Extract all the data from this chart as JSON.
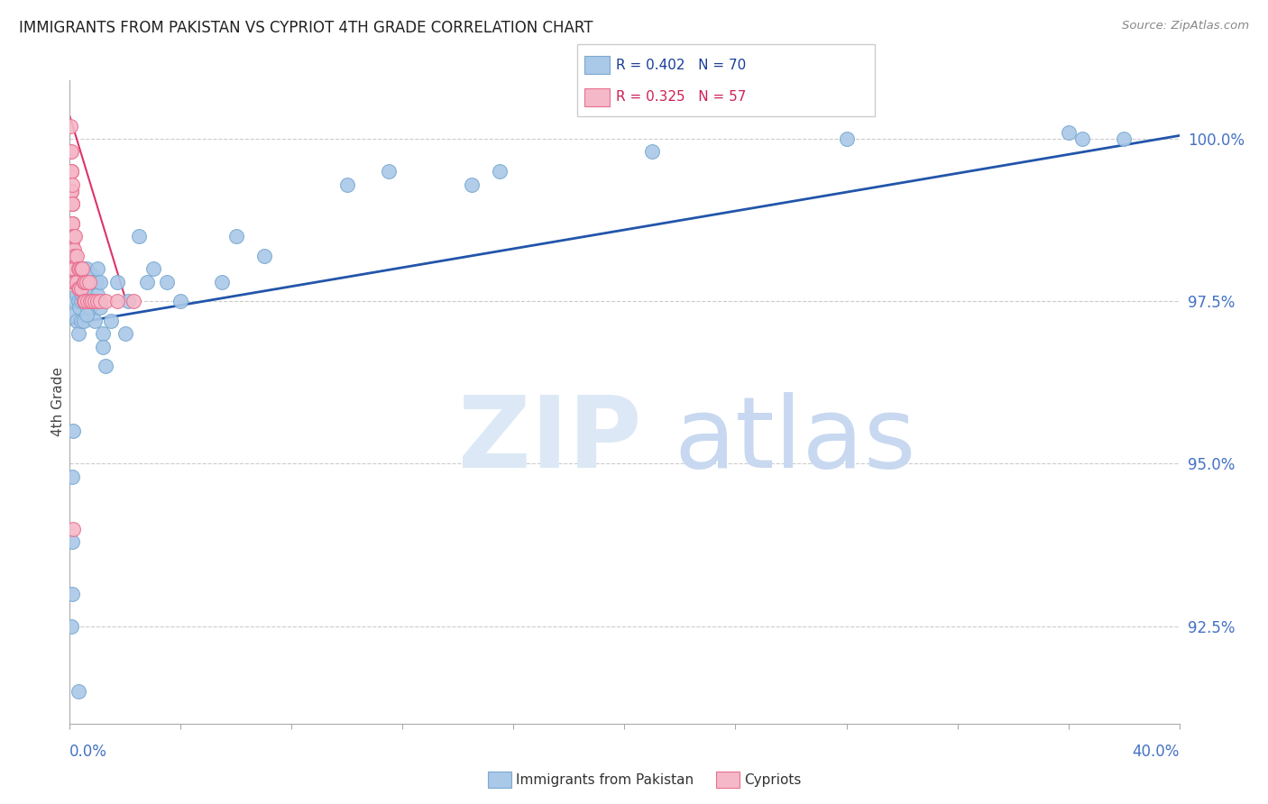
{
  "title": "IMMIGRANTS FROM PAKISTAN VS CYPRIOT 4TH GRADE CORRELATION CHART",
  "source": "Source: ZipAtlas.com",
  "ylabel": "4th Grade",
  "y_ticks": [
    92.5,
    95.0,
    97.5,
    100.0
  ],
  "y_tick_labels": [
    "92.5%",
    "95.0%",
    "97.5%",
    "100.0%"
  ],
  "x_min": 0.0,
  "x_max": 40.0,
  "y_min": 91.0,
  "y_max": 100.9,
  "legend_labels": [
    "Immigrants from Pakistan",
    "Cypriots"
  ],
  "blue_R": "0.402",
  "blue_N": "70",
  "pink_R": "0.325",
  "pink_N": "57",
  "dot_color_blue": "#aac8e8",
  "dot_color_pink": "#f5b8c8",
  "dot_edge_blue": "#7aaad0",
  "dot_edge_pink": "#e87090",
  "trend_color_blue": "#2255aa",
  "trend_color_pink": "#dd3366",
  "watermark_zip": "ZIP",
  "watermark_atlas": "atlas",
  "watermark_color": "#dce8f5",
  "blue_trend_x": [
    0.0,
    40.0
  ],
  "blue_trend_y": [
    97.15,
    100.05
  ],
  "pink_trend_x": [
    0.0,
    2.0
  ],
  "pink_trend_y": [
    100.35,
    97.55
  ],
  "blue_x": [
    0.05,
    0.08,
    0.1,
    0.1,
    0.12,
    0.15,
    0.15,
    0.2,
    0.2,
    0.25,
    0.25,
    0.3,
    0.3,
    0.3,
    0.35,
    0.35,
    0.4,
    0.4,
    0.4,
    0.45,
    0.45,
    0.5,
    0.5,
    0.5,
    0.55,
    0.55,
    0.6,
    0.6,
    0.65,
    0.65,
    0.7,
    0.7,
    0.75,
    0.75,
    0.8,
    0.8,
    0.85,
    0.9,
    0.9,
    0.95,
    1.0,
    1.0,
    1.1,
    1.1,
    1.2,
    1.2,
    1.3,
    1.5,
    1.7,
    2.0,
    2.1,
    2.5,
    2.8,
    3.0,
    3.5,
    4.0,
    5.5,
    6.0,
    7.0,
    10.0,
    11.5,
    15.5,
    21.0,
    28.0,
    36.0,
    38.0,
    14.5,
    36.5,
    0.3,
    0.6
  ],
  "blue_y": [
    92.5,
    93.8,
    94.8,
    93.0,
    95.5,
    97.8,
    97.3,
    97.5,
    97.8,
    97.6,
    97.2,
    98.0,
    97.5,
    97.0,
    97.8,
    97.4,
    97.8,
    97.5,
    97.2,
    98.0,
    97.6,
    97.8,
    97.5,
    97.2,
    97.9,
    97.5,
    98.0,
    97.6,
    97.8,
    97.4,
    97.9,
    97.5,
    97.8,
    97.4,
    97.9,
    97.5,
    97.8,
    97.5,
    97.2,
    97.8,
    98.0,
    97.6,
    97.8,
    97.4,
    97.0,
    96.8,
    96.5,
    97.2,
    97.8,
    97.0,
    97.5,
    98.5,
    97.8,
    98.0,
    97.8,
    97.5,
    97.8,
    98.5,
    98.2,
    99.3,
    99.5,
    99.5,
    99.8,
    100.0,
    100.1,
    100.0,
    99.3,
    100.0,
    91.5,
    97.3
  ],
  "pink_x": [
    0.03,
    0.03,
    0.03,
    0.04,
    0.05,
    0.05,
    0.05,
    0.06,
    0.06,
    0.07,
    0.07,
    0.08,
    0.08,
    0.08,
    0.09,
    0.09,
    0.1,
    0.1,
    0.1,
    0.1,
    0.12,
    0.12,
    0.13,
    0.13,
    0.15,
    0.15,
    0.15,
    0.15,
    0.18,
    0.2,
    0.2,
    0.2,
    0.25,
    0.25,
    0.3,
    0.3,
    0.35,
    0.35,
    0.4,
    0.4,
    0.45,
    0.5,
    0.5,
    0.55,
    0.55,
    0.6,
    0.65,
    0.7,
    0.75,
    0.8,
    0.9,
    1.0,
    1.1,
    1.3,
    1.7,
    2.3,
    0.12
  ],
  "pink_y": [
    100.2,
    99.8,
    99.5,
    99.2,
    99.8,
    99.5,
    99.2,
    99.5,
    99.2,
    99.5,
    99.2,
    99.3,
    99.0,
    98.7,
    99.0,
    98.7,
    99.0,
    98.7,
    98.4,
    98.2,
    98.5,
    98.2,
    98.5,
    98.2,
    98.5,
    98.3,
    98.0,
    97.8,
    98.2,
    98.5,
    98.2,
    97.8,
    98.2,
    97.8,
    98.0,
    97.7,
    98.0,
    97.7,
    98.0,
    97.7,
    98.0,
    97.8,
    97.5,
    97.8,
    97.5,
    97.8,
    97.5,
    97.8,
    97.5,
    97.5,
    97.5,
    97.5,
    97.5,
    97.5,
    97.5,
    97.5,
    94.0
  ]
}
